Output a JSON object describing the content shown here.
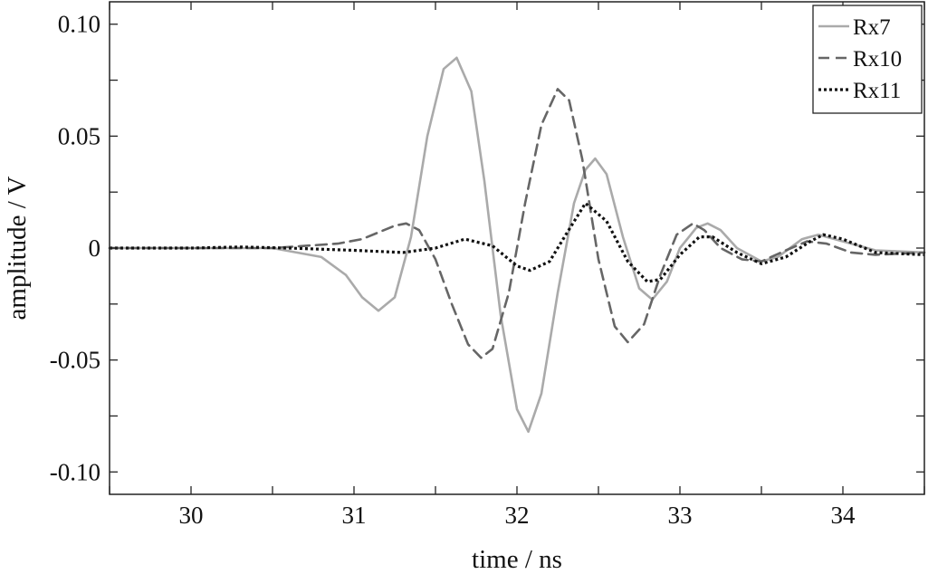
{
  "chart_data": {
    "type": "line",
    "xlabel": "time / ns",
    "ylabel": "amplitude / V",
    "xlim": [
      29.5,
      34.5
    ],
    "ylim": [
      -0.11,
      0.11
    ],
    "x_ticks": [
      30,
      31,
      32,
      33,
      34
    ],
    "x_tick_labels": [
      "30",
      "31",
      "32",
      "33",
      "34"
    ],
    "y_ticks": [
      0.1,
      0.05,
      0,
      -0.05,
      -0.1
    ],
    "y_tick_labels": [
      "0.10",
      "0.05",
      "0",
      "-0.05",
      "-0.10"
    ],
    "grid": false,
    "legend_position": "top-right",
    "series": [
      {
        "name": "Rx7",
        "color": "#aaaaaa",
        "style": "solid",
        "x": [
          29.5,
          30.0,
          30.5,
          30.8,
          30.95,
          31.05,
          31.15,
          31.25,
          31.35,
          31.45,
          31.55,
          31.63,
          31.72,
          31.8,
          31.9,
          32.0,
          32.07,
          32.15,
          32.25,
          32.35,
          32.42,
          32.48,
          32.55,
          32.65,
          32.75,
          32.83,
          32.92,
          33.0,
          33.1,
          33.17,
          33.25,
          33.35,
          33.5,
          33.6,
          33.75,
          33.85,
          34.0,
          34.2,
          34.5
        ],
        "y": [
          0.0,
          0.0,
          0.0,
          -0.004,
          -0.012,
          -0.022,
          -0.028,
          -0.022,
          0.005,
          0.05,
          0.08,
          0.085,
          0.07,
          0.03,
          -0.03,
          -0.072,
          -0.082,
          -0.065,
          -0.02,
          0.02,
          0.035,
          0.04,
          0.033,
          0.005,
          -0.018,
          -0.023,
          -0.015,
          0.0,
          0.009,
          0.011,
          0.008,
          0.0,
          -0.006,
          -0.004,
          0.004,
          0.006,
          0.003,
          -0.001,
          -0.002
        ]
      },
      {
        "name": "Rx10",
        "color": "#666666",
        "style": "dashed",
        "x": [
          29.5,
          30.5,
          30.9,
          31.05,
          31.15,
          31.25,
          31.32,
          31.4,
          31.5,
          31.6,
          31.7,
          31.78,
          31.85,
          31.95,
          32.05,
          32.15,
          32.25,
          32.32,
          32.4,
          32.5,
          32.6,
          32.68,
          32.78,
          32.88,
          32.98,
          33.08,
          33.15,
          33.25,
          33.38,
          33.5,
          33.65,
          33.78,
          33.9,
          34.05,
          34.2,
          34.5
        ],
        "y": [
          0.0,
          0.0,
          0.002,
          0.004,
          0.007,
          0.01,
          0.011,
          0.008,
          -0.005,
          -0.025,
          -0.043,
          -0.049,
          -0.045,
          -0.02,
          0.02,
          0.055,
          0.071,
          0.066,
          0.04,
          -0.005,
          -0.035,
          -0.042,
          -0.034,
          -0.012,
          0.006,
          0.011,
          0.008,
          0.0,
          -0.005,
          -0.006,
          -0.001,
          0.003,
          0.002,
          -0.002,
          -0.003,
          -0.002
        ]
      },
      {
        "name": "Rx11",
        "color": "#111111",
        "style": "dotted",
        "x": [
          29.5,
          30.0,
          30.3,
          30.6,
          31.0,
          31.3,
          31.5,
          31.68,
          31.85,
          32.0,
          32.08,
          32.2,
          32.3,
          32.42,
          32.55,
          32.68,
          32.8,
          32.88,
          33.0,
          33.12,
          33.2,
          33.35,
          33.5,
          33.65,
          33.8,
          33.88,
          34.0,
          34.2,
          34.5
        ],
        "y": [
          0.0,
          0.0,
          0.0005,
          0.0,
          -0.001,
          -0.002,
          0.0,
          0.004,
          0.001,
          -0.008,
          -0.01,
          -0.006,
          0.006,
          0.02,
          0.012,
          -0.006,
          -0.015,
          -0.014,
          -0.003,
          0.005,
          0.005,
          -0.002,
          -0.007,
          -0.004,
          0.003,
          0.006,
          0.004,
          -0.002,
          -0.003
        ]
      }
    ]
  }
}
